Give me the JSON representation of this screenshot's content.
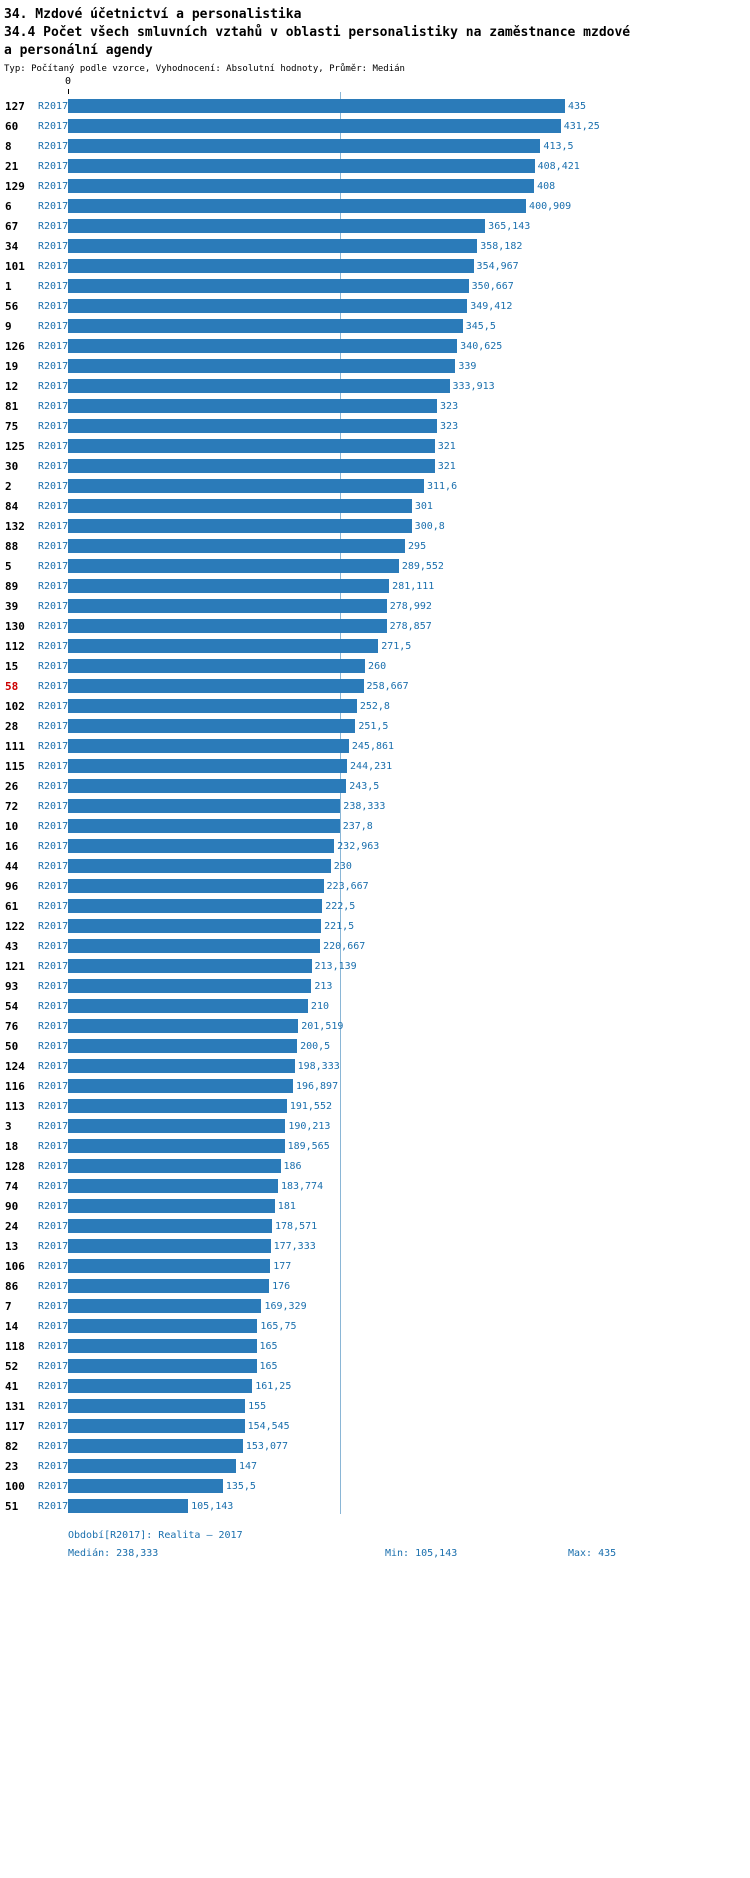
{
  "header": {
    "line1": "34. Mzdové účetnictví a personalistika",
    "line2": "34.4 Počet všech smluvních vztahů v oblasti personalistiky na zaměstnance mzdové",
    "line3": "a personální agendy",
    "subtitle": "Typ: Počítaný podle vzorce, Vyhodnocení: Absolutní hodnoty, Průměr: Medián"
  },
  "chart_data": {
    "type": "bar",
    "orientation": "horizontal",
    "title": "34.4 Počet všech smluvních vztahů v oblasti personalistiky na zaměstnance mzdové a personální agendy",
    "series_label": "R2017",
    "xlim": [
      0,
      435
    ],
    "x_axis_ticks": [
      "0"
    ],
    "median": 238.333,
    "median_line": true,
    "grid": false,
    "legend_position": "none",
    "bar_color": "#2b7bb9",
    "value_label_color": "#1a6fad",
    "highlight_row_id": "58",
    "highlight_color": "#cc0000",
    "rows": [
      {
        "id": "127",
        "value": 435,
        "display": "435"
      },
      {
        "id": "60",
        "value": 431.25,
        "display": "431,25"
      },
      {
        "id": "8",
        "value": 413.5,
        "display": "413,5"
      },
      {
        "id": "21",
        "value": 408.421,
        "display": "408,421"
      },
      {
        "id": "129",
        "value": 408,
        "display": "408"
      },
      {
        "id": "6",
        "value": 400.909,
        "display": "400,909"
      },
      {
        "id": "67",
        "value": 365.143,
        "display": "365,143"
      },
      {
        "id": "34",
        "value": 358.182,
        "display": "358,182"
      },
      {
        "id": "101",
        "value": 354.967,
        "display": "354,967"
      },
      {
        "id": "1",
        "value": 350.667,
        "display": "350,667"
      },
      {
        "id": "56",
        "value": 349.412,
        "display": "349,412"
      },
      {
        "id": "9",
        "value": 345.5,
        "display": "345,5"
      },
      {
        "id": "126",
        "value": 340.625,
        "display": "340,625"
      },
      {
        "id": "19",
        "value": 339,
        "display": "339"
      },
      {
        "id": "12",
        "value": 333.913,
        "display": "333,913"
      },
      {
        "id": "81",
        "value": 323,
        "display": "323"
      },
      {
        "id": "75",
        "value": 323,
        "display": "323"
      },
      {
        "id": "125",
        "value": 321,
        "display": "321"
      },
      {
        "id": "30",
        "value": 321,
        "display": "321"
      },
      {
        "id": "2",
        "value": 311.6,
        "display": "311,6"
      },
      {
        "id": "84",
        "value": 301,
        "display": "301"
      },
      {
        "id": "132",
        "value": 300.8,
        "display": "300,8"
      },
      {
        "id": "88",
        "value": 295,
        "display": "295"
      },
      {
        "id": "5",
        "value": 289.552,
        "display": "289,552"
      },
      {
        "id": "89",
        "value": 281.111,
        "display": "281,111"
      },
      {
        "id": "39",
        "value": 278.992,
        "display": "278,992"
      },
      {
        "id": "130",
        "value": 278.857,
        "display": "278,857"
      },
      {
        "id": "112",
        "value": 271.5,
        "display": "271,5"
      },
      {
        "id": "15",
        "value": 260,
        "display": "260"
      },
      {
        "id": "58",
        "value": 258.667,
        "display": "258,667",
        "highlight": true
      },
      {
        "id": "102",
        "value": 252.8,
        "display": "252,8"
      },
      {
        "id": "28",
        "value": 251.5,
        "display": "251,5"
      },
      {
        "id": "111",
        "value": 245.861,
        "display": "245,861"
      },
      {
        "id": "115",
        "value": 244.231,
        "display": "244,231"
      },
      {
        "id": "26",
        "value": 243.5,
        "display": "243,5"
      },
      {
        "id": "72",
        "value": 238.333,
        "display": "238,333"
      },
      {
        "id": "10",
        "value": 237.8,
        "display": "237,8"
      },
      {
        "id": "16",
        "value": 232.963,
        "display": "232,963"
      },
      {
        "id": "44",
        "value": 230,
        "display": "230"
      },
      {
        "id": "96",
        "value": 223.667,
        "display": "223,667"
      },
      {
        "id": "61",
        "value": 222.5,
        "display": "222,5"
      },
      {
        "id": "122",
        "value": 221.5,
        "display": "221,5"
      },
      {
        "id": "43",
        "value": 220.667,
        "display": "220,667"
      },
      {
        "id": "121",
        "value": 213.139,
        "display": "213,139"
      },
      {
        "id": "93",
        "value": 213,
        "display": "213"
      },
      {
        "id": "54",
        "value": 210,
        "display": "210"
      },
      {
        "id": "76",
        "value": 201.519,
        "display": "201,519"
      },
      {
        "id": "50",
        "value": 200.5,
        "display": "200,5"
      },
      {
        "id": "124",
        "value": 198.333,
        "display": "198,333"
      },
      {
        "id": "116",
        "value": 196.897,
        "display": "196,897"
      },
      {
        "id": "113",
        "value": 191.552,
        "display": "191,552"
      },
      {
        "id": "3",
        "value": 190.213,
        "display": "190,213"
      },
      {
        "id": "18",
        "value": 189.565,
        "display": "189,565"
      },
      {
        "id": "128",
        "value": 186,
        "display": "186"
      },
      {
        "id": "74",
        "value": 183.774,
        "display": "183,774"
      },
      {
        "id": "90",
        "value": 181,
        "display": "181"
      },
      {
        "id": "24",
        "value": 178.571,
        "display": "178,571"
      },
      {
        "id": "13",
        "value": 177.333,
        "display": "177,333"
      },
      {
        "id": "106",
        "value": 177,
        "display": "177"
      },
      {
        "id": "86",
        "value": 176,
        "display": "176"
      },
      {
        "id": "7",
        "value": 169.329,
        "display": "169,329"
      },
      {
        "id": "14",
        "value": 165.75,
        "display": "165,75"
      },
      {
        "id": "118",
        "value": 165,
        "display": "165"
      },
      {
        "id": "52",
        "value": 165,
        "display": "165"
      },
      {
        "id": "41",
        "value": 161.25,
        "display": "161,25"
      },
      {
        "id": "131",
        "value": 155,
        "display": "155"
      },
      {
        "id": "117",
        "value": 154.545,
        "display": "154,545"
      },
      {
        "id": "82",
        "value": 153.077,
        "display": "153,077"
      },
      {
        "id": "23",
        "value": 147,
        "display": "147"
      },
      {
        "id": "100",
        "value": 135.5,
        "display": "135,5"
      },
      {
        "id": "51",
        "value": 105.143,
        "display": "105,143"
      }
    ]
  },
  "footer": {
    "period": "Období[R2017]: Realita – 2017",
    "median": "Medián: 238,333",
    "min": "Min: 105,143",
    "max": "Max: 435"
  }
}
